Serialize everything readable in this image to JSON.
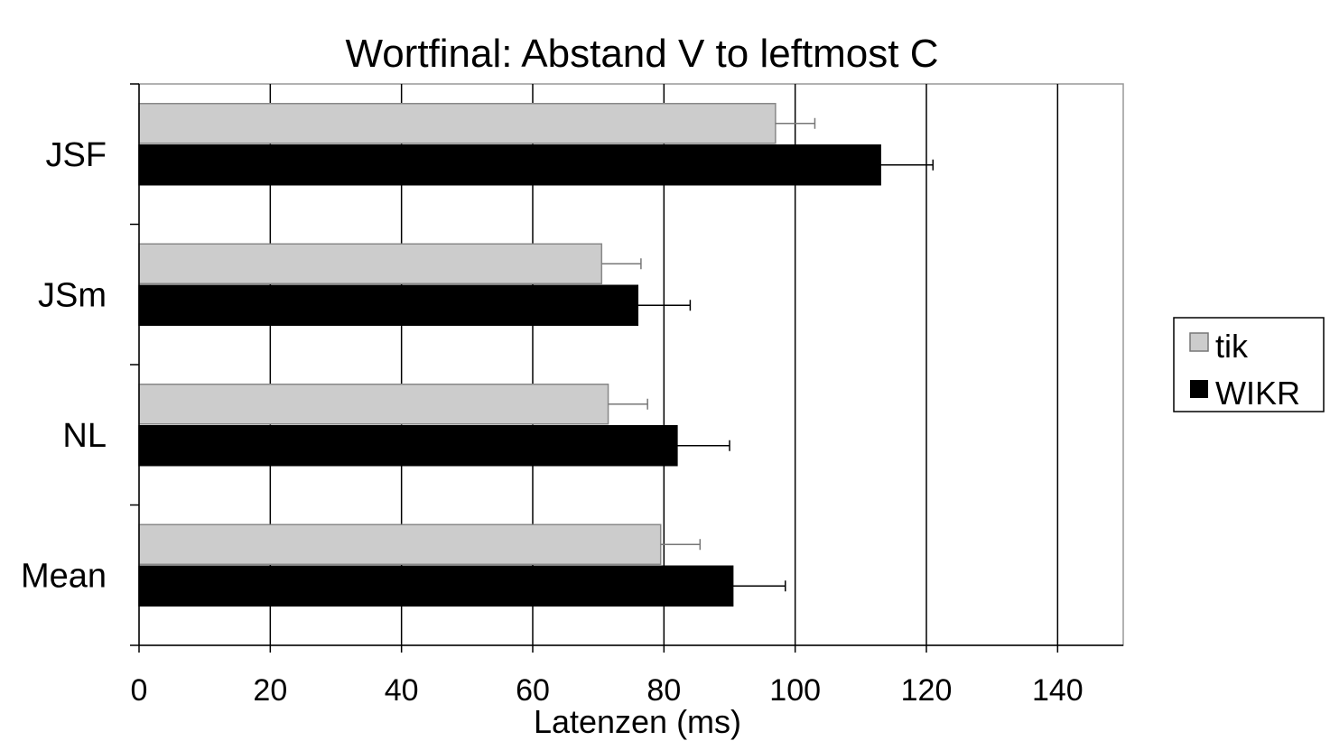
{
  "chart_data": {
    "type": "bar",
    "orientation": "horizontal",
    "title": "Wortfinal: Abstand V to leftmost C",
    "xlabel": "Latenzen (ms)",
    "ylabel": "",
    "categories": [
      "JSF",
      "JSm",
      "NL",
      "Mean"
    ],
    "xlim": [
      0,
      150
    ],
    "xticks": [
      0,
      20,
      40,
      60,
      80,
      100,
      120,
      140
    ],
    "series": [
      {
        "name": "tik",
        "color": "#cccccc",
        "values": [
          97,
          70.5,
          71.5,
          79.5
        ],
        "errors": [
          6,
          6,
          6,
          6
        ]
      },
      {
        "name": "WIKR",
        "color": "#000000",
        "values": [
          113,
          76,
          82,
          90.5
        ],
        "errors": [
          8,
          8,
          8,
          8
        ]
      }
    ],
    "grid": "vertical major lines",
    "legend": "right"
  }
}
